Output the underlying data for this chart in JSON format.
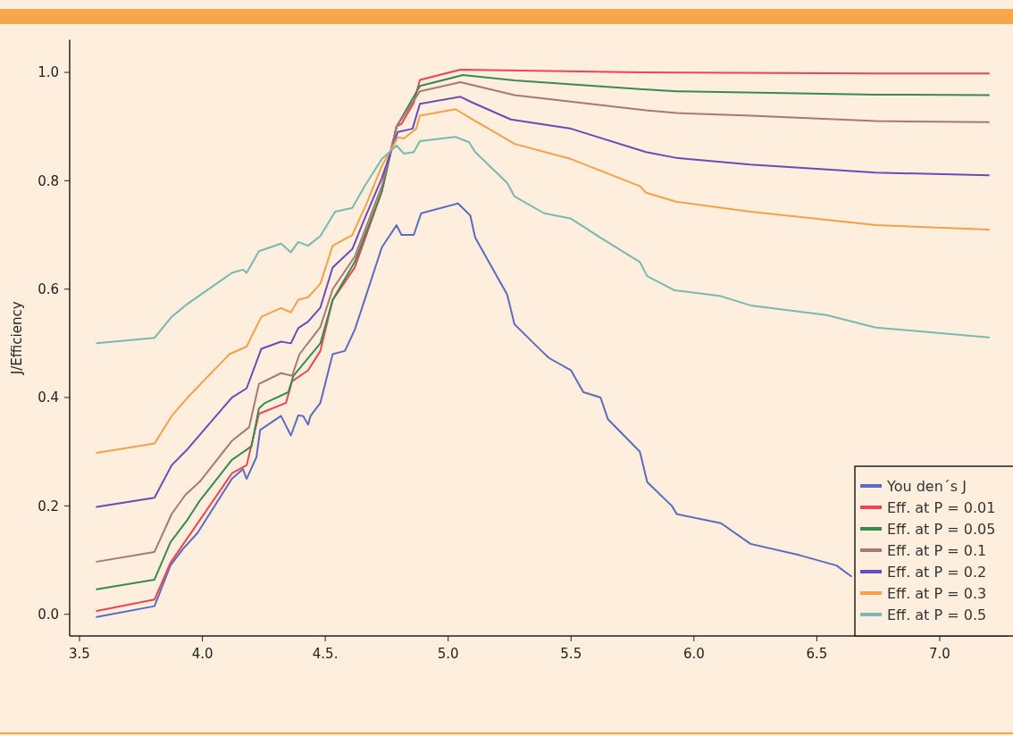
{
  "chart_data": {
    "type": "line",
    "ylabel": "J/Efficiency",
    "xlim": [
      3.46,
      7.28
    ],
    "ylim": [
      -0.04,
      1.06
    ],
    "xticks": [
      {
        "value": 3.5,
        "label": "3.5"
      },
      {
        "value": 4,
        "label": "4.0"
      },
      {
        "value": 4.5,
        "label": "4.5."
      },
      {
        "value": 5,
        "label": "5.0"
      },
      {
        "value": 5.5,
        "label": "5.5"
      },
      {
        "value": 6,
        "label": "6.0"
      },
      {
        "value": 6.5,
        "label": "6.5"
      },
      {
        "value": 7,
        "label": "7.0"
      }
    ],
    "yticks": [
      {
        "value": 0,
        "label": "0.0"
      },
      {
        "value": 0.2,
        "label": "0.2"
      },
      {
        "value": 0.4,
        "label": "0.4"
      },
      {
        "value": 0.6,
        "label": "0.6"
      },
      {
        "value": 0.8,
        "label": "0.8"
      },
      {
        "value": 1,
        "label": "1.0"
      }
    ],
    "grid": false,
    "legend": "bottom right",
    "series": [
      {
        "name": "You den´s J",
        "color": "#5b6bbf",
        "x": [
          3.57,
          3.805,
          3.87,
          3.92,
          3.98,
          4.12,
          4.165,
          4.18,
          4.22,
          4.235,
          4.32,
          4.36,
          4.39,
          4.41,
          4.43,
          4.44,
          4.48,
          4.53,
          4.58,
          4.62,
          4.66,
          4.73,
          4.79,
          4.81,
          4.86,
          4.89,
          5.04,
          5.09,
          5.11,
          5.24,
          5.27,
          5.38,
          5.41,
          5.5,
          5.55,
          5.62,
          5.65,
          5.78,
          5.81,
          5.91,
          5.93,
          6.11,
          6.23,
          6.43,
          6.58,
          6.64
        ],
        "values": [
          -0.005,
          0.015,
          0.09,
          0.12,
          0.15,
          0.25,
          0.268,
          0.25,
          0.29,
          0.34,
          0.366,
          0.33,
          0.367,
          0.366,
          0.35,
          0.366,
          0.39,
          0.48,
          0.486,
          0.525,
          0.58,
          0.677,
          0.718,
          0.7,
          0.7,
          0.74,
          0.758,
          0.736,
          0.695,
          0.59,
          0.535,
          0.486,
          0.473,
          0.45,
          0.41,
          0.4,
          0.36,
          0.3,
          0.244,
          0.2,
          0.185,
          0.168,
          0.13,
          0.109,
          0.09,
          0.07
        ]
      },
      {
        "name": "Eff. at P = 0.01",
        "color": "#ee4455",
        "x": [
          3.57,
          3.805,
          3.87,
          4.12,
          4.18,
          4.23,
          4.34,
          4.365,
          4.43,
          4.48,
          4.53,
          4.62,
          4.73,
          4.79,
          4.81,
          4.86,
          4.885,
          5.05,
          5.78,
          6.74,
          7.2
        ],
        "values": [
          0.006,
          0.027,
          0.095,
          0.26,
          0.275,
          0.37,
          0.39,
          0.43,
          0.45,
          0.486,
          0.58,
          0.64,
          0.78,
          0.9,
          0.905,
          0.944,
          0.986,
          1.005,
          1.0,
          0.998,
          0.998
        ]
      },
      {
        "name": "Eff. at P = 0.05",
        "color": "#3a8a50",
        "x": [
          3.57,
          3.805,
          3.87,
          3.94,
          3.99,
          4.12,
          4.2,
          4.23,
          4.255,
          4.35,
          4.37,
          4.48,
          4.53,
          4.62,
          4.73,
          4.79,
          4.885,
          5.06,
          5.27,
          5.78,
          5.93,
          6.74,
          7.2
        ],
        "values": [
          0.046,
          0.064,
          0.133,
          0.175,
          0.21,
          0.285,
          0.31,
          0.38,
          0.39,
          0.41,
          0.44,
          0.5,
          0.58,
          0.65,
          0.78,
          0.9,
          0.975,
          0.995,
          0.985,
          0.969,
          0.965,
          0.959,
          0.958
        ]
      },
      {
        "name": "Eff. at P = 0.1",
        "color": "#a87878",
        "x": [
          3.57,
          3.805,
          3.875,
          3.93,
          3.99,
          4.12,
          4.19,
          4.23,
          4.32,
          4.365,
          4.395,
          4.48,
          4.53,
          4.62,
          4.73,
          4.79,
          4.885,
          5.05,
          5.27,
          5.805,
          5.93,
          6.23,
          6.74,
          7.2
        ],
        "values": [
          0.097,
          0.115,
          0.185,
          0.22,
          0.245,
          0.32,
          0.345,
          0.425,
          0.445,
          0.44,
          0.48,
          0.53,
          0.6,
          0.66,
          0.79,
          0.9,
          0.965,
          0.982,
          0.958,
          0.93,
          0.925,
          0.92,
          0.91,
          0.908
        ]
      },
      {
        "name": "Eff. at P = 0.2",
        "color": "#6a4cb8",
        "x": [
          3.57,
          3.805,
          3.875,
          3.94,
          4.12,
          4.18,
          4.24,
          4.32,
          4.36,
          4.39,
          4.43,
          4.48,
          4.53,
          4.61,
          4.66,
          4.73,
          4.795,
          4.855,
          4.885,
          5.05,
          5.1,
          5.255,
          5.5,
          5.805,
          5.93,
          6.23,
          6.74,
          7.2
        ],
        "values": [
          0.198,
          0.215,
          0.275,
          0.305,
          0.4,
          0.417,
          0.49,
          0.503,
          0.5,
          0.528,
          0.54,
          0.566,
          0.64,
          0.674,
          0.73,
          0.805,
          0.89,
          0.896,
          0.942,
          0.955,
          0.944,
          0.913,
          0.896,
          0.853,
          0.842,
          0.83,
          0.815,
          0.81
        ]
      },
      {
        "name": "Eff. at P = 0.3",
        "color": "#f5a04a",
        "x": [
          3.57,
          3.805,
          3.875,
          3.94,
          4.11,
          4.18,
          4.24,
          4.32,
          4.36,
          4.39,
          4.43,
          4.48,
          4.53,
          4.61,
          4.67,
          4.73,
          4.795,
          4.82,
          4.87,
          4.885,
          5.03,
          5.1,
          5.245,
          5.27,
          5.5,
          5.78,
          5.805,
          5.93,
          6.23,
          6.74,
          7.2
        ],
        "values": [
          0.298,
          0.315,
          0.366,
          0.4,
          0.48,
          0.494,
          0.549,
          0.565,
          0.557,
          0.58,
          0.585,
          0.61,
          0.68,
          0.7,
          0.76,
          0.827,
          0.88,
          0.878,
          0.896,
          0.92,
          0.932,
          0.913,
          0.875,
          0.868,
          0.84,
          0.79,
          0.778,
          0.761,
          0.743,
          0.718,
          0.71
        ]
      },
      {
        "name": "Eff. at P = 0.5",
        "color": "#7ab8b0",
        "x": [
          3.57,
          3.805,
          3.875,
          3.94,
          4.12,
          4.165,
          4.18,
          4.23,
          4.32,
          4.36,
          4.39,
          4.43,
          4.48,
          4.54,
          4.61,
          4.66,
          4.73,
          4.79,
          4.82,
          4.86,
          4.885,
          5.03,
          5.085,
          5.11,
          5.24,
          5.27,
          5.39,
          5.5,
          5.62,
          5.78,
          5.81,
          5.92,
          6.11,
          6.23,
          6.54,
          6.74,
          7.2
        ],
        "values": [
          0.5,
          0.51,
          0.549,
          0.573,
          0.63,
          0.636,
          0.63,
          0.67,
          0.684,
          0.668,
          0.687,
          0.68,
          0.698,
          0.743,
          0.75,
          0.79,
          0.84,
          0.865,
          0.85,
          0.853,
          0.873,
          0.881,
          0.871,
          0.853,
          0.796,
          0.771,
          0.74,
          0.73,
          0.695,
          0.65,
          0.624,
          0.598,
          0.587,
          0.57,
          0.552,
          0.529,
          0.511
        ]
      }
    ]
  }
}
